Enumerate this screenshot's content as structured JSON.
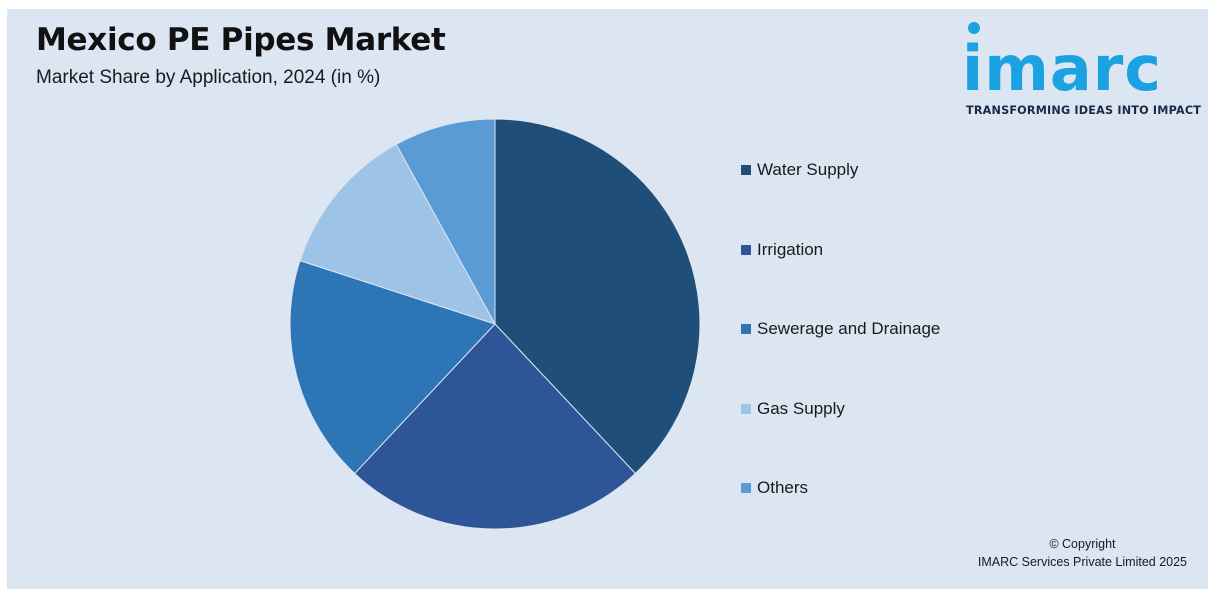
{
  "header": {
    "title": "Mexico PE Pipes Market",
    "subtitle": "Market Share by Application, 2024 (in %)"
  },
  "logo": {
    "word": "imarc",
    "tagline": "TRANSFORMING IDEAS INTO IMPACT",
    "color": "#1aa3e0"
  },
  "chart_data": {
    "type": "pie",
    "title": "Mexico PE Pipes Market",
    "subtitle": "Market Share by Application, 2024 (in %)",
    "legend_position": "right",
    "slices": [
      {
        "label": "Water Supply",
        "value": 38,
        "color": "#1f4e79"
      },
      {
        "label": "Irrigation",
        "value": 24,
        "color": "#2e5597"
      },
      {
        "label": "Sewerage and Drainage",
        "value": 18,
        "color": "#2e75b6"
      },
      {
        "label": "Gas Supply",
        "value": 12,
        "color": "#9dc3e6"
      },
      {
        "label": "Others",
        "value": 8,
        "color": "#5b9bd5"
      }
    ]
  },
  "footer": {
    "copyright_line1": "© Copyright",
    "copyright_line2": "IMARC Services Private Limited 2025"
  }
}
